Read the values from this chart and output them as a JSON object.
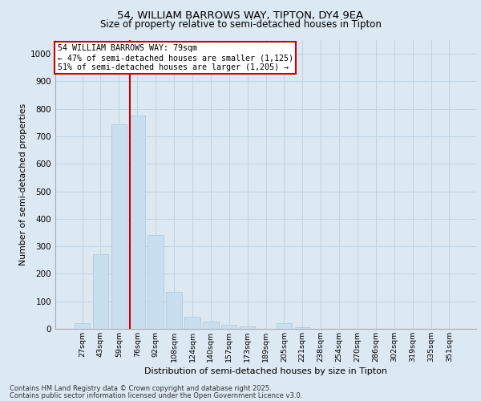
{
  "title1": "54, WILLIAM BARROWS WAY, TIPTON, DY4 9EA",
  "title2": "Size of property relative to semi-detached houses in Tipton",
  "xlabel": "Distribution of semi-detached houses by size in Tipton",
  "ylabel": "Number of semi-detached properties",
  "categories": [
    "27sqm",
    "43sqm",
    "59sqm",
    "76sqm",
    "92sqm",
    "108sqm",
    "124sqm",
    "140sqm",
    "157sqm",
    "173sqm",
    "189sqm",
    "205sqm",
    "221sqm",
    "238sqm",
    "254sqm",
    "270sqm",
    "286sqm",
    "302sqm",
    "319sqm",
    "335sqm",
    "351sqm"
  ],
  "values": [
    20,
    270,
    745,
    775,
    340,
    135,
    45,
    25,
    15,
    8,
    0,
    20,
    5,
    0,
    0,
    0,
    0,
    0,
    0,
    0,
    0
  ],
  "bar_color": "#c9dff0",
  "bar_edge_color": "#a8c4d8",
  "property_line_index": 2.6,
  "property_size": "79sqm",
  "pct_smaller": 47,
  "n_smaller": 1125,
  "pct_larger": 51,
  "n_larger": 1205,
  "annotation_box_color": "#ffffff",
  "annotation_box_edge": "#cc0000",
  "line_color": "#cc0000",
  "ylim": [
    0,
    1050
  ],
  "yticks": [
    0,
    100,
    200,
    300,
    400,
    500,
    600,
    700,
    800,
    900,
    1000
  ],
  "grid_color": "#c0d4e4",
  "bg_color": "#dce8f2",
  "footer1": "Contains HM Land Registry data © Crown copyright and database right 2025.",
  "footer2": "Contains public sector information licensed under the Open Government Licence v3.0."
}
